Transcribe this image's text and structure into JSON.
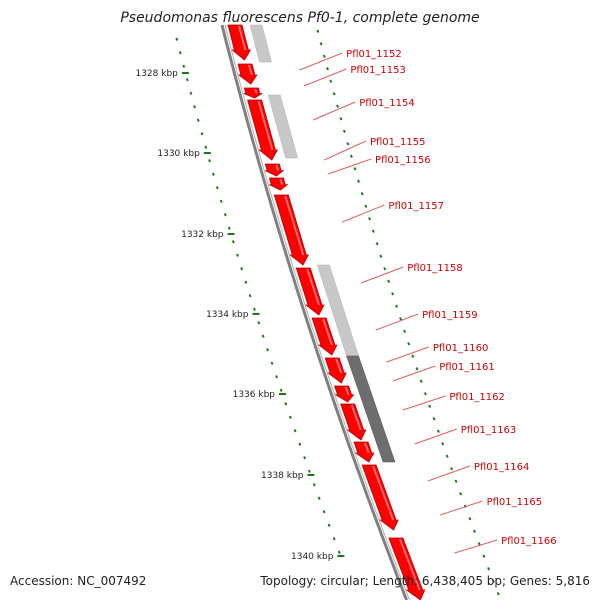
{
  "title": "Pseudomonas fluorescens Pf0-1, complete genome",
  "footer": {
    "accession": "Accession: NC_007492",
    "summary": "Topology: circular; Length: 6,438,405 bp; Genes: 5,816"
  },
  "colors": {
    "gene_fill": "#ff0000",
    "gene_dark": "#b80000",
    "backbone": "#808080",
    "tick": "#1a7a1a",
    "label": "#cc0000",
    "leader": "#e06060",
    "feature_light": "#c8c8c8",
    "feature_dark": "#6e6e6e"
  },
  "kbp_ticks": [
    {
      "label": "1328 kbp"
    },
    {
      "label": "1330 kbp"
    },
    {
      "label": "1332 kbp"
    },
    {
      "label": "1334 kbp"
    },
    {
      "label": "1336 kbp"
    },
    {
      "label": "1338 kbp"
    },
    {
      "label": "1340 kbp"
    }
  ],
  "genes": [
    {
      "label": "Pfl01_1152"
    },
    {
      "label": "Pfl01_1153"
    },
    {
      "label": "Pfl01_1154"
    },
    {
      "label": "Pfl01_1155"
    },
    {
      "label": "Pfl01_1156"
    },
    {
      "label": "Pfl01_1157"
    },
    {
      "label": "Pfl01_1158"
    },
    {
      "label": "Pfl01_1159"
    },
    {
      "label": "Pfl01_1160"
    },
    {
      "label": "Pfl01_1161"
    },
    {
      "label": "Pfl01_1162"
    },
    {
      "label": "Pfl01_1163"
    },
    {
      "label": "Pfl01_1164"
    },
    {
      "label": "Pfl01_1165"
    },
    {
      "label": "Pfl01_1166"
    }
  ]
}
